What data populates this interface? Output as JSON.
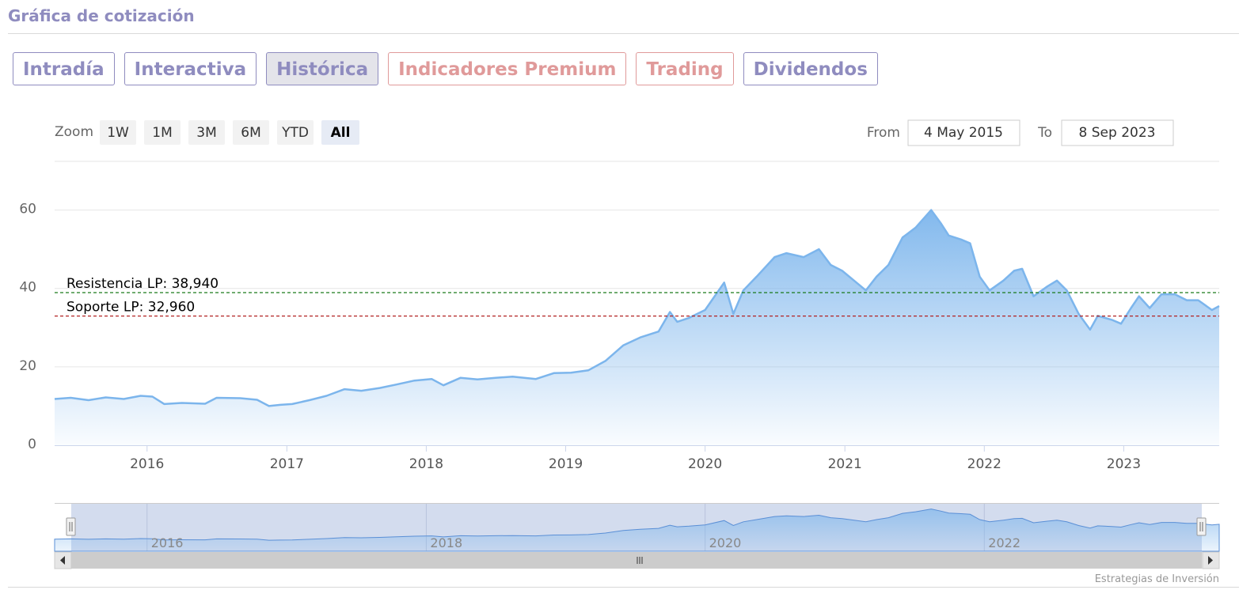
{
  "header": {
    "title": "Gráfica de cotización"
  },
  "tabs": [
    {
      "label": "Intradía",
      "active": false,
      "style": "normal"
    },
    {
      "label": "Interactiva",
      "active": false,
      "style": "normal"
    },
    {
      "label": "Histórica",
      "active": true,
      "style": "normal"
    },
    {
      "label": "Indicadores Premium",
      "active": false,
      "style": "premium"
    },
    {
      "label": "Trading",
      "active": false,
      "style": "premium"
    },
    {
      "label": "Dividendos",
      "active": false,
      "style": "normal"
    }
  ],
  "range_selector": {
    "zoom_label": "Zoom",
    "buttons": [
      "1W",
      "1M",
      "3M",
      "6M",
      "YTD",
      "All"
    ],
    "selected": "All",
    "from_label": "From",
    "from_value": "4 May 2015",
    "to_label": "To",
    "to_value": "8 Sep 2023"
  },
  "colors": {
    "series_line": "#7cb5ec",
    "resistance": "#1a7a1a",
    "support": "#b22222",
    "tab_primary": "#8f8cbf",
    "tab_premium": "#e09a9a"
  },
  "credit": "Estrategias de Inversión",
  "chart_data": {
    "type": "area",
    "x_type": "datetime",
    "xlim": [
      "2015-05-04",
      "2023-09-08"
    ],
    "ylim": [
      0,
      70
    ],
    "y_ticks": [
      0,
      20,
      40,
      60
    ],
    "x_ticks": [
      "2016",
      "2017",
      "2018",
      "2019",
      "2020",
      "2021",
      "2022",
      "2023"
    ],
    "grid": true,
    "legend": "none",
    "series": [
      {
        "points": [
          [
            "2015-05-04",
            11.8
          ],
          [
            "2015-06-15",
            12.1
          ],
          [
            "2015-08-01",
            11.5
          ],
          [
            "2015-09-15",
            12.2
          ],
          [
            "2015-11-01",
            11.8
          ],
          [
            "2015-12-15",
            12.6
          ],
          [
            "2016-01-15",
            12.4
          ],
          [
            "2016-02-15",
            10.5
          ],
          [
            "2016-04-01",
            10.8
          ],
          [
            "2016-06-01",
            10.6
          ],
          [
            "2016-07-01",
            12.1
          ],
          [
            "2016-09-01",
            12.0
          ],
          [
            "2016-10-15",
            11.6
          ],
          [
            "2016-11-15",
            10.0
          ],
          [
            "2016-12-15",
            10.3
          ],
          [
            "2017-01-15",
            10.5
          ],
          [
            "2017-03-01",
            11.5
          ],
          [
            "2017-04-15",
            12.6
          ],
          [
            "2017-06-01",
            14.3
          ],
          [
            "2017-07-15",
            13.9
          ],
          [
            "2017-09-01",
            14.6
          ],
          [
            "2017-10-15",
            15.5
          ],
          [
            "2017-12-01",
            16.5
          ],
          [
            "2018-01-15",
            16.9
          ],
          [
            "2018-02-15",
            15.3
          ],
          [
            "2018-04-01",
            17.2
          ],
          [
            "2018-05-15",
            16.8
          ],
          [
            "2018-07-01",
            17.2
          ],
          [
            "2018-08-15",
            17.5
          ],
          [
            "2018-10-15",
            16.9
          ],
          [
            "2018-12-01",
            18.4
          ],
          [
            "2019-01-15",
            18.5
          ],
          [
            "2019-03-01",
            19.1
          ],
          [
            "2019-04-15",
            21.5
          ],
          [
            "2019-06-01",
            25.5
          ],
          [
            "2019-07-15",
            27.5
          ],
          [
            "2019-09-01",
            29.0
          ],
          [
            "2019-10-01",
            34.0
          ],
          [
            "2019-10-20",
            31.5
          ],
          [
            "2019-11-20",
            32.5
          ],
          [
            "2020-01-01",
            34.5
          ],
          [
            "2020-02-20",
            41.5
          ],
          [
            "2020-03-15",
            33.5
          ],
          [
            "2020-04-10",
            39.5
          ],
          [
            "2020-05-15",
            43.0
          ],
          [
            "2020-07-01",
            48.0
          ],
          [
            "2020-08-01",
            49.0
          ],
          [
            "2020-09-15",
            48.0
          ],
          [
            "2020-10-25",
            50.0
          ],
          [
            "2020-11-25",
            46.0
          ],
          [
            "2020-12-25",
            44.5
          ],
          [
            "2021-01-25",
            42.0
          ],
          [
            "2021-02-25",
            39.5
          ],
          [
            "2021-03-25",
            43.0
          ],
          [
            "2021-04-25",
            46.0
          ],
          [
            "2021-06-01",
            53.0
          ],
          [
            "2021-07-05",
            55.5
          ],
          [
            "2021-08-15",
            60.0
          ],
          [
            "2021-09-10",
            56.5
          ],
          [
            "2021-09-30",
            53.5
          ],
          [
            "2021-11-01",
            52.5
          ],
          [
            "2021-11-25",
            51.5
          ],
          [
            "2021-12-20",
            43.0
          ],
          [
            "2022-01-15",
            39.5
          ],
          [
            "2022-02-20",
            42.0
          ],
          [
            "2022-03-20",
            44.5
          ],
          [
            "2022-04-10",
            45.0
          ],
          [
            "2022-05-10",
            38.0
          ],
          [
            "2022-06-15",
            40.5
          ],
          [
            "2022-07-10",
            42.0
          ],
          [
            "2022-08-05",
            39.5
          ],
          [
            "2022-09-05",
            33.5
          ],
          [
            "2022-10-05",
            29.5
          ],
          [
            "2022-10-25",
            33.0
          ],
          [
            "2022-12-01",
            32.0
          ],
          [
            "2022-12-25",
            31.0
          ],
          [
            "2023-01-20",
            35.0
          ],
          [
            "2023-02-10",
            38.0
          ],
          [
            "2023-03-10",
            35.0
          ],
          [
            "2023-04-10",
            38.5
          ],
          [
            "2023-05-15",
            38.5
          ],
          [
            "2023-06-15",
            37.0
          ],
          [
            "2023-07-15",
            37.0
          ],
          [
            "2023-08-20",
            34.5
          ],
          [
            "2023-09-08",
            35.5
          ]
        ]
      }
    ],
    "annotations": [
      {
        "label": "Resistencia LP: 38,940",
        "value": 38.94,
        "color": "#1a7a1a",
        "style": "dashed"
      },
      {
        "label": "Soporte LP: 32,960",
        "value": 32.96,
        "color": "#b22222",
        "style": "dashed"
      }
    ],
    "navigator": {
      "x_ticks": [
        "2016",
        "2018",
        "2020",
        "2022"
      ]
    }
  }
}
